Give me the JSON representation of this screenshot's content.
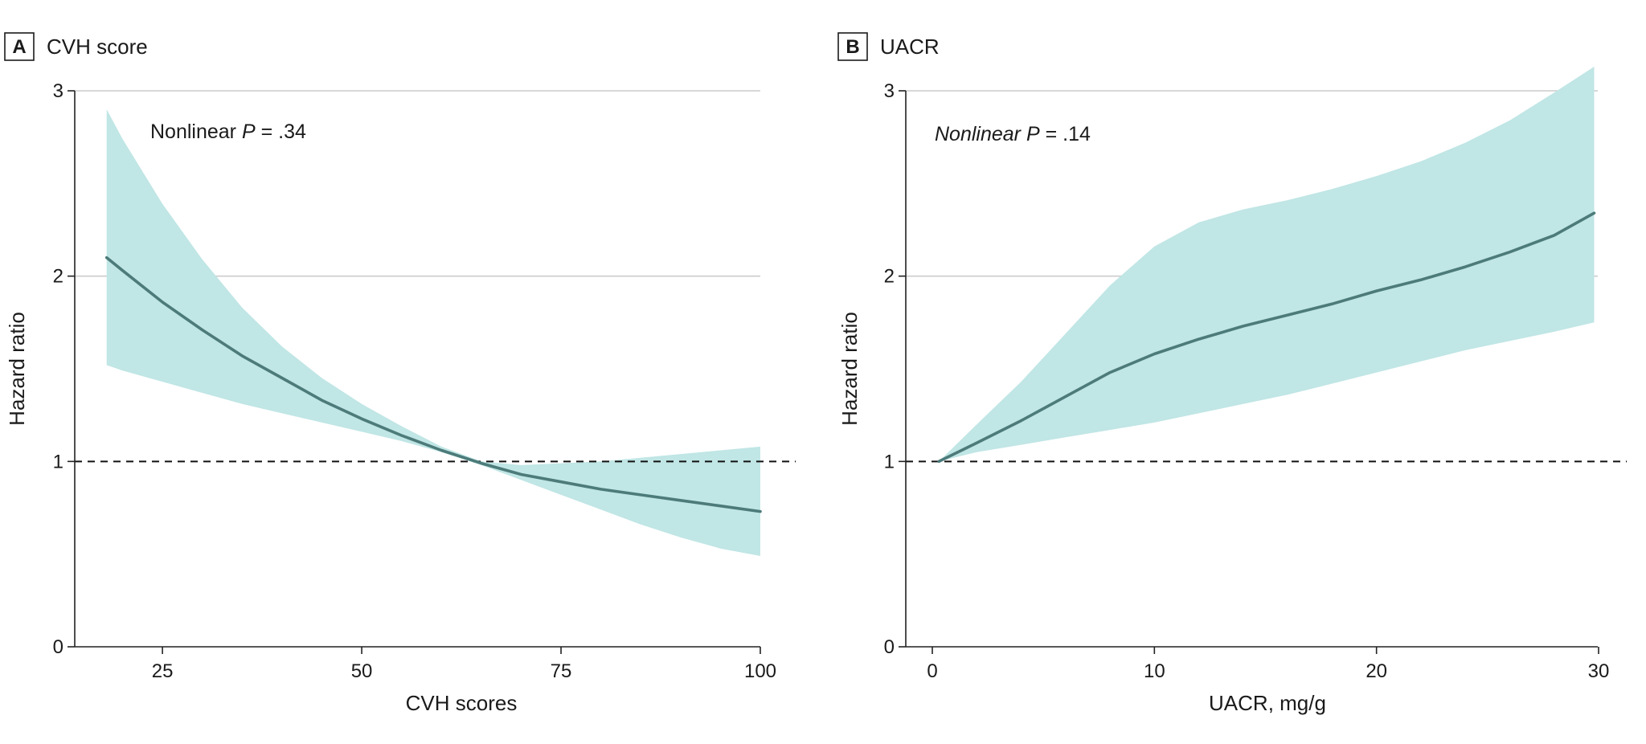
{
  "colors": {
    "band": "#c0e6e5",
    "line": "#4c7b7a",
    "grid": "#cccccc",
    "axis": "#222222",
    "reference": "#111111"
  },
  "chart_data": [
    {
      "type": "line",
      "panel_letter": "A",
      "title": "CVH score",
      "xlabel": "CVH scores",
      "ylabel": "Hazard ratio",
      "xlim": [
        14,
        100
      ],
      "ylim": [
        0,
        3
      ],
      "x_ticks": [
        25,
        50,
        75,
        100
      ],
      "y_ticks": [
        0,
        1,
        2,
        3
      ],
      "grid_y": [
        2,
        3
      ],
      "reference_line_y": 1,
      "annotation": {
        "prefix": "Nonlinear ",
        "p_symbol": "P",
        "value": " = .34"
      },
      "series": [
        {
          "name": "Hazard ratio",
          "x": [
            18,
            20,
            25,
            30,
            35,
            40,
            45,
            50,
            55,
            60,
            65,
            70,
            75,
            80,
            85,
            90,
            95,
            100
          ],
          "y": [
            2.1,
            2.03,
            1.86,
            1.71,
            1.57,
            1.45,
            1.33,
            1.23,
            1.14,
            1.06,
            0.99,
            0.93,
            0.89,
            0.85,
            0.82,
            0.79,
            0.76,
            0.73
          ],
          "lower": [
            1.52,
            1.49,
            1.43,
            1.37,
            1.31,
            1.26,
            1.21,
            1.16,
            1.11,
            1.05,
            0.98,
            0.9,
            0.82,
            0.74,
            0.66,
            0.59,
            0.53,
            0.49
          ],
          "upper": [
            2.9,
            2.74,
            2.39,
            2.09,
            1.83,
            1.62,
            1.45,
            1.31,
            1.19,
            1.08,
            1.0,
            0.98,
            0.99,
            1.0,
            1.02,
            1.04,
            1.06,
            1.08
          ]
        }
      ]
    },
    {
      "type": "line",
      "panel_letter": "B",
      "title": "UACR",
      "xlabel": "UACR, mg/g",
      "ylabel": "Hazard ratio",
      "xlim": [
        -1.5,
        30
      ],
      "ylim": [
        0,
        3
      ],
      "x_ticks": [
        0,
        10,
        20,
        30
      ],
      "y_ticks": [
        0,
        1,
        2,
        3
      ],
      "grid_y": [
        2,
        3
      ],
      "reference_line_y": 1,
      "annotation": {
        "prefix": "",
        "p_symbol": "Nonlinear P",
        "value": " = .14"
      },
      "series": [
        {
          "name": "Hazard ratio",
          "x": [
            0.3,
            2,
            4,
            6,
            8,
            10,
            12,
            14,
            16,
            18,
            20,
            22,
            24,
            26,
            28,
            29.8
          ],
          "y": [
            1.0,
            1.1,
            1.22,
            1.35,
            1.48,
            1.58,
            1.66,
            1.73,
            1.79,
            1.85,
            1.92,
            1.98,
            2.05,
            2.13,
            2.22,
            2.34
          ],
          "lower": [
            1.0,
            1.05,
            1.09,
            1.13,
            1.17,
            1.21,
            1.26,
            1.31,
            1.36,
            1.42,
            1.48,
            1.54,
            1.6,
            1.65,
            1.7,
            1.75
          ],
          "upper": [
            1.0,
            1.2,
            1.43,
            1.69,
            1.95,
            2.16,
            2.29,
            2.36,
            2.41,
            2.47,
            2.54,
            2.62,
            2.72,
            2.84,
            2.99,
            3.13
          ]
        }
      ]
    }
  ]
}
